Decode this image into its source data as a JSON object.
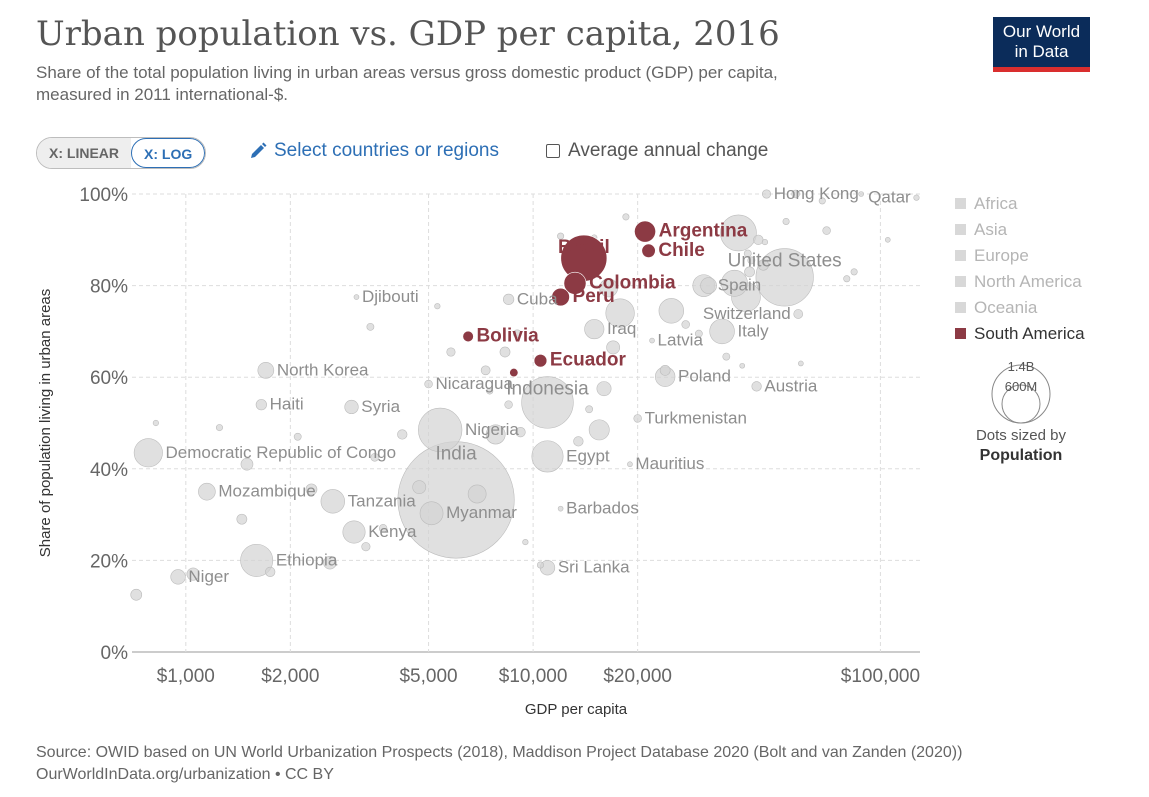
{
  "header": {
    "title": "Urban population vs. GDP per capita, 2016",
    "subtitle_line1": "Share of the total population living in urban areas versus gross domestic product (GDP) per capita,",
    "subtitle_line2": "measured in 2011 international-$.",
    "logo_line1": "Our World",
    "logo_line2": "in Data"
  },
  "controls": {
    "linear_label": "X: LINEAR",
    "log_label": "X: LOG",
    "active_scale": "log",
    "select_label": "Select countries or regions",
    "avg_change_label": "Average annual change",
    "avg_change_checked": false
  },
  "footer": {
    "line1": "Source: OWID based on UN World Urbanization Prospects (2018), Maddison Project Database 2020 (Bolt and van Zanden (2020))",
    "line2": "OurWorldInData.org/urbanization • CC BY"
  },
  "colors": {
    "highlight": "#8c3a44",
    "faded_dot": "#d3d3d3",
    "faded_label": "#8e8e8e",
    "grid": "#dddddd",
    "legend_faded": "#b5b5b5"
  },
  "chart_data": {
    "type": "scatter",
    "xscale": "log",
    "xlim": [
      700,
      130000
    ],
    "ylim": [
      0,
      100
    ],
    "xlabel": "GDP per capita",
    "ylabel": "Share of population living in urban areas",
    "x_ticks": [
      {
        "value": 1000,
        "label": "$1,000"
      },
      {
        "value": 2000,
        "label": "$2,000"
      },
      {
        "value": 5000,
        "label": "$5,000"
      },
      {
        "value": 10000,
        "label": "$10,000"
      },
      {
        "value": 20000,
        "label": "$20,000"
      },
      {
        "value": 100000,
        "label": "$100,000"
      }
    ],
    "y_ticks": [
      {
        "value": 0,
        "label": "0%"
      },
      {
        "value": 20,
        "label": "20%"
      },
      {
        "value": 40,
        "label": "40%"
      },
      {
        "value": 60,
        "label": "60%"
      },
      {
        "value": 80,
        "label": "80%"
      },
      {
        "value": 100,
        "label": "100%"
      }
    ],
    "grid": true,
    "legend": {
      "placement": "right",
      "items": [
        {
          "name": "Africa",
          "highlighted": false
        },
        {
          "name": "Asia",
          "highlighted": false
        },
        {
          "name": "Europe",
          "highlighted": false
        },
        {
          "name": "North America",
          "highlighted": false
        },
        {
          "name": "Oceania",
          "highlighted": false
        },
        {
          "name": "South America",
          "highlighted": true
        }
      ],
      "size_title_line1": "Dots sized by",
      "size_title_line2": "Population",
      "size_big_label": "1.4B",
      "size_small_label": "600M"
    },
    "points": [
      {
        "label": "Argentina",
        "x": 21000,
        "y": 91.8,
        "pop": 44,
        "hl": true
      },
      {
        "label": "Brazil",
        "x": 14000,
        "y": 86,
        "pop": 208,
        "hl": true
      },
      {
        "label": "Chile",
        "x": 21500,
        "y": 87.6,
        "pop": 18,
        "hl": true
      },
      {
        "label": "Colombia",
        "x": 13200,
        "y": 80.5,
        "pop": 48,
        "hl": true
      },
      {
        "label": "Peru",
        "x": 12000,
        "y": 77.5,
        "pop": 31,
        "hl": true
      },
      {
        "label": "Bolivia",
        "x": 6500,
        "y": 68.9,
        "pop": 11,
        "hl": true
      },
      {
        "label": "Ecuador",
        "x": 10500,
        "y": 63.6,
        "pop": 16,
        "hl": true
      },
      {
        "label": "",
        "x": 8800,
        "y": 61,
        "pop": 7,
        "hl": true
      },
      {
        "label": "Hong Kong",
        "x": 47000,
        "y": 100,
        "pop": 7,
        "hl": false
      },
      {
        "label": "Qatar",
        "x": 127000,
        "y": 99.2,
        "pop": 3,
        "hl": false
      },
      {
        "label": "United States",
        "x": 53000,
        "y": 81.8,
        "pop": 323,
        "hl": false
      },
      {
        "label": "Switzerland",
        "x": 58000,
        "y": 73.8,
        "pop": 8,
        "hl": false
      },
      {
        "label": "Spain",
        "x": 31000,
        "y": 80,
        "pop": 47,
        "hl": false
      },
      {
        "label": "Italy",
        "x": 35000,
        "y": 70,
        "pop": 60,
        "hl": false
      },
      {
        "label": "Austria",
        "x": 44000,
        "y": 58,
        "pop": 9,
        "hl": false
      },
      {
        "label": "Poland",
        "x": 24000,
        "y": 60.1,
        "pop": 38,
        "hl": false
      },
      {
        "label": "Latvia",
        "x": 22000,
        "y": 68,
        "pop": 2,
        "hl": false
      },
      {
        "label": "Iraq",
        "x": 15000,
        "y": 70.5,
        "pop": 37,
        "hl": false
      },
      {
        "label": "Turkmenistan",
        "x": 20000,
        "y": 51,
        "pop": 6,
        "hl": false
      },
      {
        "label": "Mauritius",
        "x": 19000,
        "y": 41,
        "pop": 1,
        "hl": false
      },
      {
        "label": "Cuba",
        "x": 8500,
        "y": 77,
        "pop": 11,
        "hl": false
      },
      {
        "label": "Djibouti",
        "x": 3100,
        "y": 77.5,
        "pop": 1,
        "hl": false
      },
      {
        "label": "North Korea",
        "x": 1700,
        "y": 61.5,
        "pop": 25,
        "hl": false
      },
      {
        "label": "Haiti",
        "x": 1650,
        "y": 54,
        "pop": 11,
        "hl": false
      },
      {
        "label": "Syria",
        "x": 3000,
        "y": 53.5,
        "pop": 18,
        "hl": false
      },
      {
        "label": "Nicaragua",
        "x": 5000,
        "y": 58.5,
        "pop": 6,
        "hl": false
      },
      {
        "label": "Indonesia",
        "x": 11000,
        "y": 54.5,
        "pop": 261,
        "hl": false
      },
      {
        "label": "Nigeria",
        "x": 5400,
        "y": 48.5,
        "pop": 186,
        "hl": false
      },
      {
        "label": "Egypt",
        "x": 11000,
        "y": 42.7,
        "pop": 96,
        "hl": false
      },
      {
        "label": "Democratic Republic of Congo",
        "x": 780,
        "y": 43.5,
        "pop": 79,
        "hl": false
      },
      {
        "label": "India",
        "x": 6000,
        "y": 33.2,
        "pop": 1324,
        "hl": false
      },
      {
        "label": "Mozambique",
        "x": 1150,
        "y": 35,
        "pop": 28,
        "hl": false
      },
      {
        "label": "Tanzania",
        "x": 2650,
        "y": 32.9,
        "pop": 55,
        "hl": false
      },
      {
        "label": "Myanmar",
        "x": 5100,
        "y": 30.3,
        "pop": 52,
        "hl": false
      },
      {
        "label": "Kenya",
        "x": 3050,
        "y": 26.2,
        "pop": 49,
        "hl": false
      },
      {
        "label": "Barbados",
        "x": 12000,
        "y": 31.3,
        "pop": 0.3,
        "hl": false
      },
      {
        "label": "Ethiopia",
        "x": 1600,
        "y": 20,
        "pop": 102,
        "hl": false
      },
      {
        "label": "Niger",
        "x": 950,
        "y": 16.4,
        "pop": 21,
        "hl": false
      },
      {
        "label": "Sri Lanka",
        "x": 11000,
        "y": 18.4,
        "pop": 21,
        "hl": false
      },
      {
        "label": "",
        "x": 720,
        "y": 12.5,
        "pop": 12,
        "hl": false
      },
      {
        "label": "",
        "x": 1050,
        "y": 17,
        "pop": 15,
        "hl": false
      },
      {
        "label": "",
        "x": 1450,
        "y": 29,
        "pop": 10,
        "hl": false
      },
      {
        "label": "",
        "x": 1750,
        "y": 17.5,
        "pop": 9,
        "hl": false
      },
      {
        "label": "",
        "x": 2600,
        "y": 19.5,
        "pop": 16,
        "hl": false
      },
      {
        "label": "",
        "x": 3300,
        "y": 23,
        "pop": 7,
        "hl": false
      },
      {
        "label": "",
        "x": 3700,
        "y": 27,
        "pop": 6,
        "hl": false
      },
      {
        "label": "",
        "x": 2300,
        "y": 35.5,
        "pop": 12,
        "hl": false
      },
      {
        "label": "",
        "x": 3500,
        "y": 42.5,
        "pop": 6,
        "hl": false
      },
      {
        "label": "",
        "x": 4200,
        "y": 47.5,
        "pop": 9,
        "hl": false
      },
      {
        "label": "",
        "x": 2100,
        "y": 47,
        "pop": 5,
        "hl": false
      },
      {
        "label": "",
        "x": 1500,
        "y": 41,
        "pop": 14,
        "hl": false
      },
      {
        "label": "",
        "x": 820,
        "y": 50,
        "pop": 3,
        "hl": false
      },
      {
        "label": "",
        "x": 1250,
        "y": 49,
        "pop": 4,
        "hl": false
      },
      {
        "label": "",
        "x": 3400,
        "y": 71,
        "pop": 5,
        "hl": false
      },
      {
        "label": "",
        "x": 5300,
        "y": 75.5,
        "pop": 3,
        "hl": false
      },
      {
        "label": "",
        "x": 5800,
        "y": 65.5,
        "pop": 7,
        "hl": false
      },
      {
        "label": "",
        "x": 7300,
        "y": 61.5,
        "pop": 8,
        "hl": false
      },
      {
        "label": "",
        "x": 8300,
        "y": 65.5,
        "pop": 10,
        "hl": false
      },
      {
        "label": "",
        "x": 9000,
        "y": 69.5,
        "pop": 6,
        "hl": false
      },
      {
        "label": "",
        "x": 7500,
        "y": 57,
        "pop": 4,
        "hl": false
      },
      {
        "label": "",
        "x": 7800,
        "y": 47.5,
        "pop": 36,
        "hl": false
      },
      {
        "label": "",
        "x": 9200,
        "y": 48,
        "pop": 9,
        "hl": false
      },
      {
        "label": "",
        "x": 8500,
        "y": 54,
        "pop": 6,
        "hl": false
      },
      {
        "label": "",
        "x": 9500,
        "y": 24,
        "pop": 3,
        "hl": false
      },
      {
        "label": "",
        "x": 10500,
        "y": 19,
        "pop": 4,
        "hl": false
      },
      {
        "label": "",
        "x": 13500,
        "y": 46,
        "pop": 9,
        "hl": false
      },
      {
        "label": "",
        "x": 14500,
        "y": 53,
        "pop": 5,
        "hl": false
      },
      {
        "label": "",
        "x": 15500,
        "y": 48.5,
        "pop": 40,
        "hl": false
      },
      {
        "label": "",
        "x": 16000,
        "y": 57.5,
        "pop": 20,
        "hl": false
      },
      {
        "label": "",
        "x": 17000,
        "y": 66.5,
        "pop": 17,
        "hl": false
      },
      {
        "label": "",
        "x": 17800,
        "y": 74,
        "pop": 80,
        "hl": false
      },
      {
        "label": "",
        "x": 16500,
        "y": 79.5,
        "pop": 32,
        "hl": false
      },
      {
        "label": "",
        "x": 15000,
        "y": 90.5,
        "pop": 3,
        "hl": false
      },
      {
        "label": "",
        "x": 12000,
        "y": 90.8,
        "pop": 4,
        "hl": false
      },
      {
        "label": "",
        "x": 18500,
        "y": 95,
        "pop": 4,
        "hl": false
      },
      {
        "label": "",
        "x": 25000,
        "y": 74.5,
        "pop": 60,
        "hl": false
      },
      {
        "label": "",
        "x": 24000,
        "y": 61.5,
        "pop": 10,
        "hl": false
      },
      {
        "label": "",
        "x": 27500,
        "y": 71.5,
        "pop": 6,
        "hl": false
      },
      {
        "label": "",
        "x": 30000,
        "y": 69.5,
        "pop": 5,
        "hl": false
      },
      {
        "label": "",
        "x": 36000,
        "y": 64.5,
        "pop": 5,
        "hl": false
      },
      {
        "label": "",
        "x": 40000,
        "y": 62.5,
        "pop": 2,
        "hl": false
      },
      {
        "label": "",
        "x": 32000,
        "y": 80,
        "pop": 25,
        "hl": false
      },
      {
        "label": "",
        "x": 38000,
        "y": 80.5,
        "pop": 67,
        "hl": false
      },
      {
        "label": "",
        "x": 41000,
        "y": 77.5,
        "pop": 82,
        "hl": false
      },
      {
        "label": "",
        "x": 42000,
        "y": 83,
        "pop": 10,
        "hl": false
      },
      {
        "label": "",
        "x": 46000,
        "y": 84.5,
        "pop": 11,
        "hl": false
      },
      {
        "label": "",
        "x": 42500,
        "y": 85.5,
        "pop": 5,
        "hl": false
      },
      {
        "label": "",
        "x": 39000,
        "y": 91.5,
        "pop": 127,
        "hl": false
      },
      {
        "label": "",
        "x": 41500,
        "y": 87,
        "pop": 5,
        "hl": false
      },
      {
        "label": "",
        "x": 44500,
        "y": 90,
        "pop": 9,
        "hl": false
      },
      {
        "label": "",
        "x": 46500,
        "y": 89.5,
        "pop": 3,
        "hl": false
      },
      {
        "label": "",
        "x": 53500,
        "y": 94,
        "pop": 4,
        "hl": false
      },
      {
        "label": "",
        "x": 70000,
        "y": 92,
        "pop": 6,
        "hl": false
      },
      {
        "label": "",
        "x": 80000,
        "y": 81.5,
        "pop": 4,
        "hl": false
      },
      {
        "label": "",
        "x": 84000,
        "y": 83,
        "pop": 4,
        "hl": false
      },
      {
        "label": "",
        "x": 68000,
        "y": 98.5,
        "pop": 4,
        "hl": false
      },
      {
        "label": "",
        "x": 57000,
        "y": 100,
        "pop": 6,
        "hl": false
      },
      {
        "label": "",
        "x": 88000,
        "y": 100,
        "pop": 0.5,
        "hl": false
      },
      {
        "label": "",
        "x": 105000,
        "y": 90,
        "pop": 0.6,
        "hl": false
      },
      {
        "label": "",
        "x": 59000,
        "y": 63,
        "pop": 0.5,
        "hl": false
      },
      {
        "label": "",
        "x": 4700,
        "y": 36,
        "pop": 17,
        "hl": false
      },
      {
        "label": "",
        "x": 6900,
        "y": 34.5,
        "pop": 32,
        "hl": false
      }
    ]
  }
}
